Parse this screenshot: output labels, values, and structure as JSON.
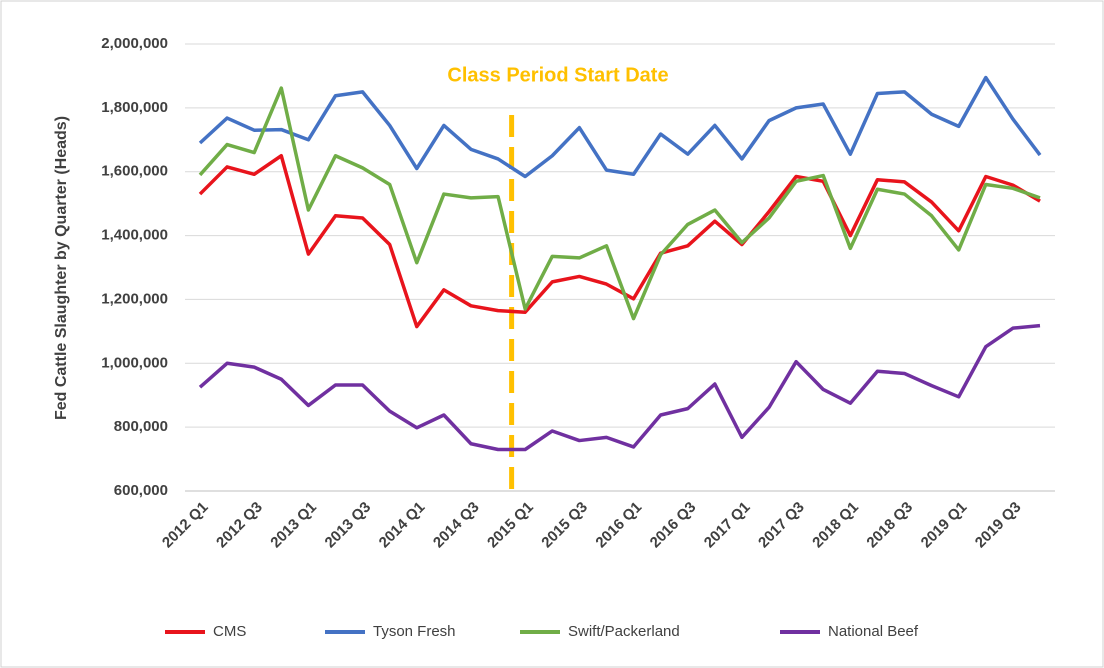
{
  "chart_data": {
    "type": "line",
    "ylabel": "Fed Cattle Slaughter by Quarter (Heads)",
    "annotation": "Class Period Start Date",
    "categories": [
      "2012 Q1",
      null,
      "2012 Q3",
      null,
      "2013 Q1",
      null,
      "2013 Q3",
      null,
      "2014 Q1",
      null,
      "2014 Q3",
      null,
      "2015 Q1",
      null,
      "2015 Q3",
      null,
      "2016 Q1",
      null,
      "2016 Q3",
      null,
      "2017 Q1",
      null,
      "2017 Q3",
      null,
      "2018 Q1",
      null,
      "2018 Q3",
      null,
      "2019 Q1",
      null,
      "2019 Q3",
      null
    ],
    "series": [
      {
        "name": "CMS",
        "color": "#e8141c",
        "values": [
          1530000,
          1615000,
          1592000,
          1650000,
          1342000,
          1462000,
          1455000,
          1372000,
          1115000,
          1230000,
          1180000,
          1165000,
          1160000,
          1255000,
          1272000,
          1248000,
          1202000,
          1345000,
          1368000,
          1445000,
          1372000,
          1475000,
          1585000,
          1570000,
          1400000,
          1575000,
          1568000,
          1505000,
          1415000,
          1585000,
          1558000,
          1508000
        ]
      },
      {
        "name": "Tyson Fresh",
        "color": "#4472c4",
        "values": [
          1690000,
          1768000,
          1730000,
          1732000,
          1700000,
          1838000,
          1850000,
          1745000,
          1610000,
          1745000,
          1670000,
          1640000,
          1585000,
          1650000,
          1738000,
          1605000,
          1592000,
          1718000,
          1655000,
          1745000,
          1640000,
          1760000,
          1800000,
          1812000,
          1655000,
          1845000,
          1850000,
          1780000,
          1742000,
          1895000,
          1765000,
          1652000
        ]
      },
      {
        "name": "Swift/Packerland",
        "color": "#70ad47",
        "values": [
          1590000,
          1685000,
          1660000,
          1862000,
          1480000,
          1650000,
          1612000,
          1560000,
          1315000,
          1530000,
          1518000,
          1522000,
          1170000,
          1335000,
          1330000,
          1368000,
          1140000,
          1340000,
          1435000,
          1480000,
          1378000,
          1455000,
          1570000,
          1588000,
          1360000,
          1545000,
          1530000,
          1462000,
          1355000,
          1560000,
          1548000,
          1518000
        ]
      },
      {
        "name": "National Beef",
        "color": "#7030a0",
        "values": [
          925000,
          1000000,
          988000,
          950000,
          868000,
          932000,
          932000,
          850000,
          798000,
          838000,
          748000,
          730000,
          730000,
          788000,
          758000,
          768000,
          738000,
          838000,
          858000,
          935000,
          768000,
          862000,
          1005000,
          918000,
          875000,
          975000,
          968000,
          930000,
          895000,
          1052000,
          1110000,
          1118000
        ]
      }
    ],
    "ylim": [
      600000,
      2000000
    ],
    "yticks": [
      {
        "value": 600000,
        "label": "600,000"
      },
      {
        "value": 800000,
        "label": "800,000"
      },
      {
        "value": 1000000,
        "label": "1,000,000"
      },
      {
        "value": 1200000,
        "label": "1,200,000"
      },
      {
        "value": 1400000,
        "label": "1,400,000"
      },
      {
        "value": 1600000,
        "label": "1,600,000"
      },
      {
        "value": 1800000,
        "label": "1,800,000"
      },
      {
        "value": 2000000,
        "label": "2,000,000"
      }
    ],
    "grid": true
  }
}
